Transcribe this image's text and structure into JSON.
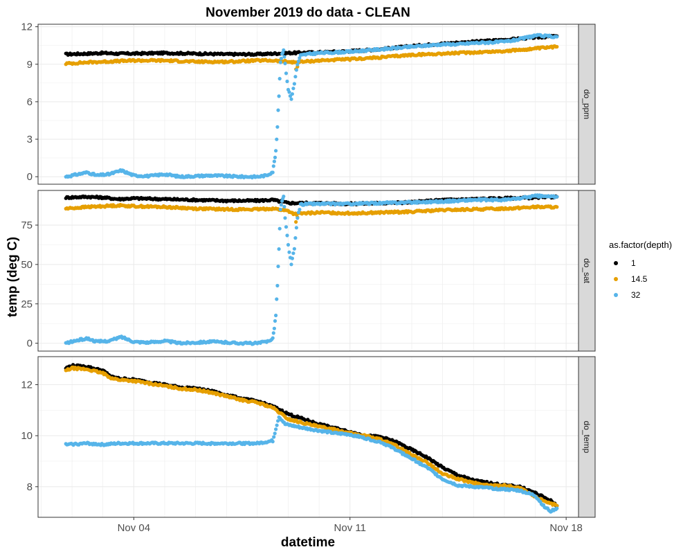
{
  "chart_data": {
    "type": "scatter",
    "title": "November 2019 do data - CLEAN",
    "xlabel": "datetime",
    "ylabel": "temp (deg C)",
    "x_unit": "day of November 2019",
    "xlim": [
      0.9,
      18.4
    ],
    "x_ticks": [
      {
        "value": 4,
        "label": "Nov 04"
      },
      {
        "value": 11,
        "label": "Nov 11"
      },
      {
        "value": 18,
        "label": "Nov 18"
      }
    ],
    "grid": true,
    "legend": {
      "title": "as.factor(depth)",
      "position": "right",
      "entries": [
        {
          "label": "1",
          "color": "#000000"
        },
        {
          "label": "14.5",
          "color": "#E69F00"
        },
        {
          "label": "32",
          "color": "#56B4E9"
        }
      ]
    },
    "panels": [
      {
        "strip": "do_ppm",
        "ylim": [
          -0.6,
          12.2
        ],
        "y_ticks": [
          0,
          3,
          6,
          9,
          12
        ],
        "series": [
          {
            "name": "1",
            "color": "#000000",
            "x": [
              1.8,
              2.5,
              3.0,
              3.5,
              4.0,
              5.0,
              6.0,
              7.0,
              8.0,
              8.5,
              9.0,
              10.0,
              11.0,
              12.0,
              13.0,
              14.0,
              15.0,
              16.0,
              17.0,
              17.7
            ],
            "y": [
              9.8,
              9.85,
              9.9,
              9.85,
              9.85,
              9.9,
              9.85,
              9.8,
              9.8,
              9.85,
              9.9,
              9.95,
              10.05,
              10.2,
              10.45,
              10.65,
              10.8,
              10.95,
              11.15,
              11.25
            ]
          },
          {
            "name": "14.5",
            "color": "#E69F00",
            "x": [
              1.8,
              2.5,
              3.0,
              3.5,
              4.0,
              5.0,
              6.0,
              7.0,
              8.0,
              8.5,
              9.0,
              9.2,
              10.0,
              11.0,
              12.0,
              13.0,
              14.0,
              15.0,
              16.0,
              17.0,
              17.7
            ],
            "y": [
              9.05,
              9.15,
              9.2,
              9.25,
              9.3,
              9.3,
              9.2,
              9.2,
              9.3,
              9.3,
              9.2,
              9.15,
              9.3,
              9.4,
              9.55,
              9.75,
              9.85,
              9.95,
              10.05,
              10.25,
              10.4
            ],
            "outliers": [
              {
                "x": 9.25,
                "y": 8.6
              },
              {
                "x": 9.3,
                "y": 8.8
              }
            ]
          },
          {
            "name": "32",
            "color": "#56B4E9",
            "x": [
              1.8,
              2.2,
              2.5,
              2.8,
              3.2,
              3.6,
              4.0,
              4.5,
              5.0,
              5.5,
              6.0,
              6.5,
              7.0,
              7.5,
              8.0,
              8.3,
              8.5,
              8.55,
              8.6,
              8.65,
              8.7,
              8.75,
              8.8,
              8.85,
              8.9,
              9.0,
              9.1,
              9.2,
              9.3,
              9.4,
              9.6,
              10.0,
              11.0,
              12.0,
              13.0,
              14.0,
              14.5,
              15.0,
              16.0,
              16.5,
              17.0,
              17.7
            ],
            "y": [
              0.0,
              0.2,
              0.35,
              0.1,
              0.2,
              0.5,
              0.1,
              0.05,
              0.2,
              0.0,
              0.05,
              0.1,
              0.05,
              0.0,
              0.0,
              0.1,
              0.4,
              1.2,
              2.0,
              4.0,
              6.5,
              9.2,
              9.8,
              10.2,
              9.0,
              7.0,
              6.2,
              7.5,
              9.0,
              9.7,
              9.8,
              9.9,
              10.0,
              10.2,
              10.4,
              10.6,
              10.6,
              10.7,
              10.8,
              11.0,
              11.3,
              11.2
            ]
          }
        ]
      },
      {
        "strip": "do_sat",
        "ylim": [
          -5,
          97
        ],
        "y_ticks": [
          0,
          25,
          50,
          75
        ],
        "series": [
          {
            "name": "1",
            "color": "#000000",
            "x": [
              1.8,
              2.5,
              3.0,
              3.5,
              4.0,
              5.0,
              6.0,
              7.0,
              8.0,
              8.5,
              9.0,
              10.0,
              11.0,
              12.0,
              13.0,
              14.0,
              15.0,
              16.0,
              17.0,
              17.7
            ],
            "y": [
              92.5,
              93.0,
              92.5,
              91.5,
              92.0,
              91.5,
              91.0,
              90.5,
              90.5,
              91.0,
              89.0,
              89.0,
              88.5,
              89.0,
              89.5,
              91.0,
              91.5,
              92.0,
              92.5,
              93.0
            ]
          },
          {
            "name": "14.5",
            "color": "#E69F00",
            "x": [
              1.8,
              2.5,
              3.0,
              3.5,
              4.0,
              5.0,
              6.0,
              7.0,
              8.0,
              8.5,
              9.0,
              9.2,
              10.0,
              11.0,
              12.0,
              13.0,
              14.0,
              15.0,
              16.0,
              17.0,
              17.7
            ],
            "y": [
              85.5,
              86.5,
              87.0,
              87.5,
              87.0,
              86.5,
              85.5,
              85.0,
              85.0,
              85.5,
              84.0,
              82.0,
              83.0,
              82.5,
              83.0,
              83.5,
              84.5,
              85.0,
              85.5,
              86.5,
              86.5
            ],
            "outliers": [
              {
                "x": 9.25,
                "y": 77.0
              },
              {
                "x": 9.3,
                "y": 80.0
              }
            ]
          },
          {
            "name": "32",
            "color": "#56B4E9",
            "x": [
              1.8,
              2.2,
              2.5,
              2.8,
              3.2,
              3.6,
              4.0,
              4.5,
              5.0,
              5.5,
              6.0,
              6.5,
              7.0,
              7.5,
              8.0,
              8.3,
              8.5,
              8.55,
              8.6,
              8.65,
              8.7,
              8.75,
              8.8,
              8.85,
              8.9,
              9.0,
              9.1,
              9.2,
              9.3,
              9.4,
              9.6,
              10.0,
              11.0,
              12.0,
              13.0,
              14.0,
              14.5,
              15.0,
              16.0,
              16.5,
              17.0,
              17.7
            ],
            "y": [
              0.0,
              2.0,
              3.0,
              1.0,
              1.5,
              4.0,
              1.0,
              0.5,
              1.5,
              0.0,
              0.5,
              1.0,
              0.5,
              0.0,
              0.0,
              1.0,
              3.0,
              10.0,
              18.0,
              37.0,
              60.0,
              85.0,
              90.0,
              93.0,
              80.0,
              62.0,
              50.0,
              60.0,
              80.0,
              88.0,
              88.5,
              88.5,
              88.5,
              89.0,
              89.5,
              90.0,
              90.5,
              91.0,
              91.0,
              92.0,
              93.5,
              93.0
            ]
          }
        ]
      },
      {
        "strip": "do_temp",
        "ylim": [
          6.8,
          13.1
        ],
        "y_ticks": [
          8,
          10,
          12
        ],
        "series": [
          {
            "name": "1",
            "color": "#000000",
            "x": [
              1.8,
              2.0,
              2.5,
              3.0,
              3.3,
              3.5,
              4.0,
              4.5,
              5.0,
              5.5,
              6.0,
              6.5,
              7.0,
              7.5,
              8.0,
              8.5,
              9.0,
              9.5,
              10.0,
              10.5,
              11.0,
              11.5,
              12.0,
              12.5,
              13.0,
              13.5,
              14.0,
              14.5,
              15.0,
              15.5,
              16.0,
              16.5,
              17.0,
              17.5,
              17.7
            ],
            "y": [
              12.65,
              12.75,
              12.7,
              12.55,
              12.3,
              12.25,
              12.2,
              12.1,
              12.0,
              11.9,
              11.85,
              11.75,
              11.6,
              11.45,
              11.35,
              11.15,
              10.85,
              10.65,
              10.45,
              10.3,
              10.15,
              10.0,
              9.95,
              9.75,
              9.45,
              9.15,
              8.75,
              8.45,
              8.25,
              8.15,
              8.05,
              8.0,
              7.75,
              7.45,
              7.25
            ]
          },
          {
            "name": "14.5",
            "color": "#E69F00",
            "x": [
              1.8,
              2.0,
              2.5,
              3.0,
              3.3,
              3.5,
              4.0,
              4.5,
              5.0,
              5.5,
              6.0,
              6.5,
              7.0,
              7.5,
              8.0,
              8.5,
              9.0,
              9.5,
              10.0,
              10.5,
              11.0,
              11.5,
              12.0,
              12.5,
              13.0,
              13.5,
              14.0,
              14.5,
              15.0,
              15.5,
              16.0,
              16.5,
              17.0,
              17.5,
              17.7
            ],
            "y": [
              12.55,
              12.65,
              12.6,
              12.45,
              12.25,
              12.2,
              12.15,
              12.05,
              11.95,
              11.85,
              11.8,
              11.7,
              11.55,
              11.4,
              11.3,
              11.1,
              10.65,
              10.5,
              10.35,
              10.25,
              10.1,
              10.0,
              9.85,
              9.6,
              9.25,
              8.95,
              8.5,
              8.3,
              8.15,
              8.05,
              8.05,
              7.95,
              7.6,
              7.35,
              7.25
            ]
          },
          {
            "name": "32",
            "color": "#56B4E9",
            "x": [
              1.8,
              2.5,
              3.0,
              3.5,
              4.0,
              5.0,
              6.0,
              7.0,
              8.0,
              8.5,
              8.7,
              8.9,
              9.1,
              9.3,
              9.5,
              10.0,
              10.5,
              11.0,
              11.5,
              12.0,
              12.5,
              13.0,
              13.5,
              14.0,
              14.5,
              15.0,
              15.5,
              16.0,
              16.5,
              17.0,
              17.3,
              17.5,
              17.7
            ],
            "y": [
              9.65,
              9.7,
              9.65,
              9.7,
              9.7,
              9.7,
              9.7,
              9.7,
              9.7,
              9.8,
              10.75,
              10.45,
              10.4,
              10.35,
              10.3,
              10.2,
              10.1,
              10.05,
              9.9,
              9.75,
              9.45,
              9.1,
              8.75,
              8.3,
              8.05,
              8.0,
              7.95,
              7.9,
              7.85,
              7.65,
              7.2,
              7.05,
              7.15
            ]
          }
        ]
      }
    ]
  }
}
